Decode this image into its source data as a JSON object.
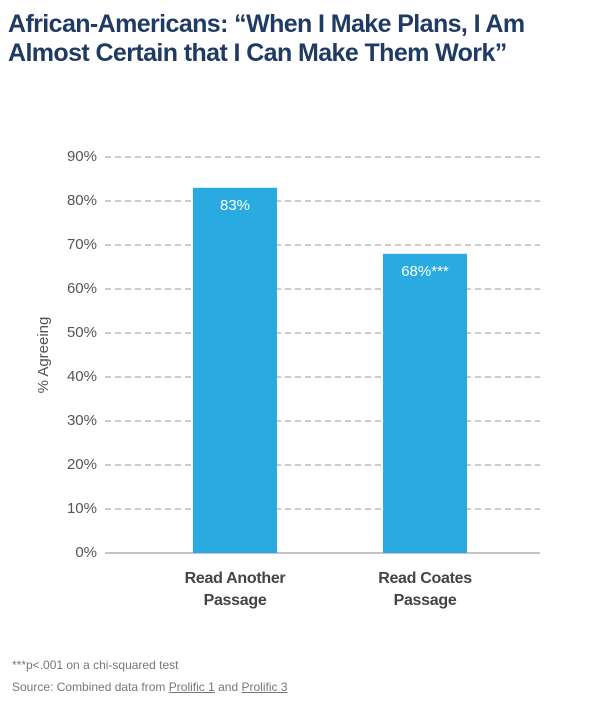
{
  "chart_data": {
    "type": "bar",
    "title": "African-Americans: “When I Make Plans, I Am Almost Certain that I Can Make Them Work”",
    "y_label": "% Agreeing",
    "categories": [
      "Read Another Passage",
      "Read Coates Passage"
    ],
    "values": [
      83,
      68
    ],
    "value_labels": [
      "83%",
      "68%***"
    ],
    "color": "#29abe2",
    "ylim": [
      0,
      90
    ],
    "yticks": [
      {
        "value": 0,
        "label": "0%"
      },
      {
        "value": 10,
        "label": "10%"
      },
      {
        "value": 20,
        "label": "20%"
      },
      {
        "value": 30,
        "label": "30%"
      },
      {
        "value": 40,
        "label": "40%"
      },
      {
        "value": 50,
        "label": "50%"
      },
      {
        "value": 60,
        "label": "60%"
      },
      {
        "value": 70,
        "label": "70%"
      },
      {
        "value": 80,
        "label": "80%"
      },
      {
        "value": 90,
        "label": "90%"
      }
    ],
    "grid": true,
    "footnote": "***p<.001 on a chi-squared test",
    "source": [
      "Source: Combined data from",
      "Prolific 1",
      "and",
      "Prolific 3"
    ]
  }
}
